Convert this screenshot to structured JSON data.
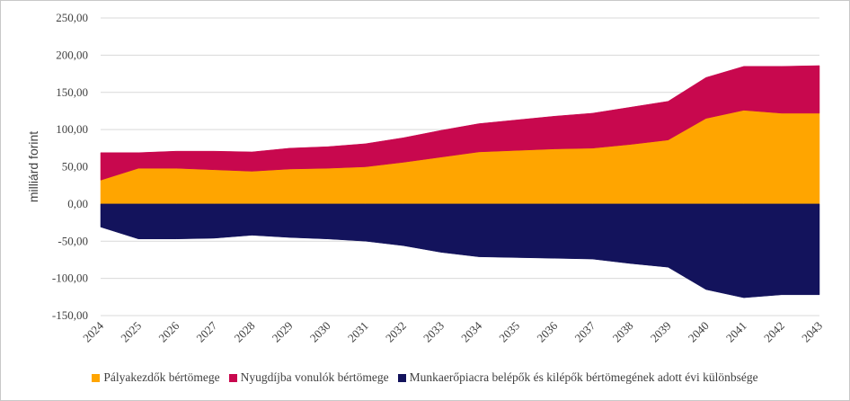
{
  "chart_data": {
    "type": "area",
    "stacked": true,
    "ylabel": "milliárd forint",
    "xlabel": "",
    "ylim": [
      -150,
      250
    ],
    "yticks": [
      -150,
      -100,
      -50,
      0,
      50,
      100,
      150,
      200,
      250
    ],
    "ytick_labels": [
      "-150,00",
      "-100,00",
      "-50,00",
      "0,00",
      "50,00",
      "100,00",
      "150,00",
      "200,00",
      "250,00"
    ],
    "categories": [
      "2024",
      "2025",
      "2026",
      "2027",
      "2028",
      "2029",
      "2030",
      "2031",
      "2032",
      "2033",
      "2034",
      "2035",
      "2036",
      "2037",
      "2038",
      "2039",
      "2040",
      "2041",
      "2042",
      "2043"
    ],
    "grid": "horizontal",
    "legend_position": "bottom",
    "series": [
      {
        "name": "Pályakezdők bértömege",
        "color": "#FFA500",
        "values": [
          32,
          48,
          48,
          46,
          44,
          47,
          48,
          50,
          56,
          63,
          70,
          72,
          74,
          75,
          80,
          86,
          115,
          126,
          122,
          122
        ]
      },
      {
        "name": "Nyugdíjba vonulók bértömege",
        "color": "#C8084E",
        "values": [
          37,
          21,
          23,
          25,
          26,
          28,
          29,
          31,
          33,
          36,
          38,
          41,
          44,
          47,
          50,
          52,
          55,
          59,
          63,
          64
        ]
      },
      {
        "name": "Munkaerőpiacra belépők és kilépők bértömegének adott évi különbsége",
        "color": "#13135C",
        "values": [
          -31,
          -47,
          -47,
          -46,
          -42,
          -45,
          -47,
          -50,
          -56,
          -65,
          -71,
          -72,
          -73,
          -74,
          -80,
          -85,
          -115,
          -126,
          -122,
          -122
        ]
      }
    ]
  }
}
